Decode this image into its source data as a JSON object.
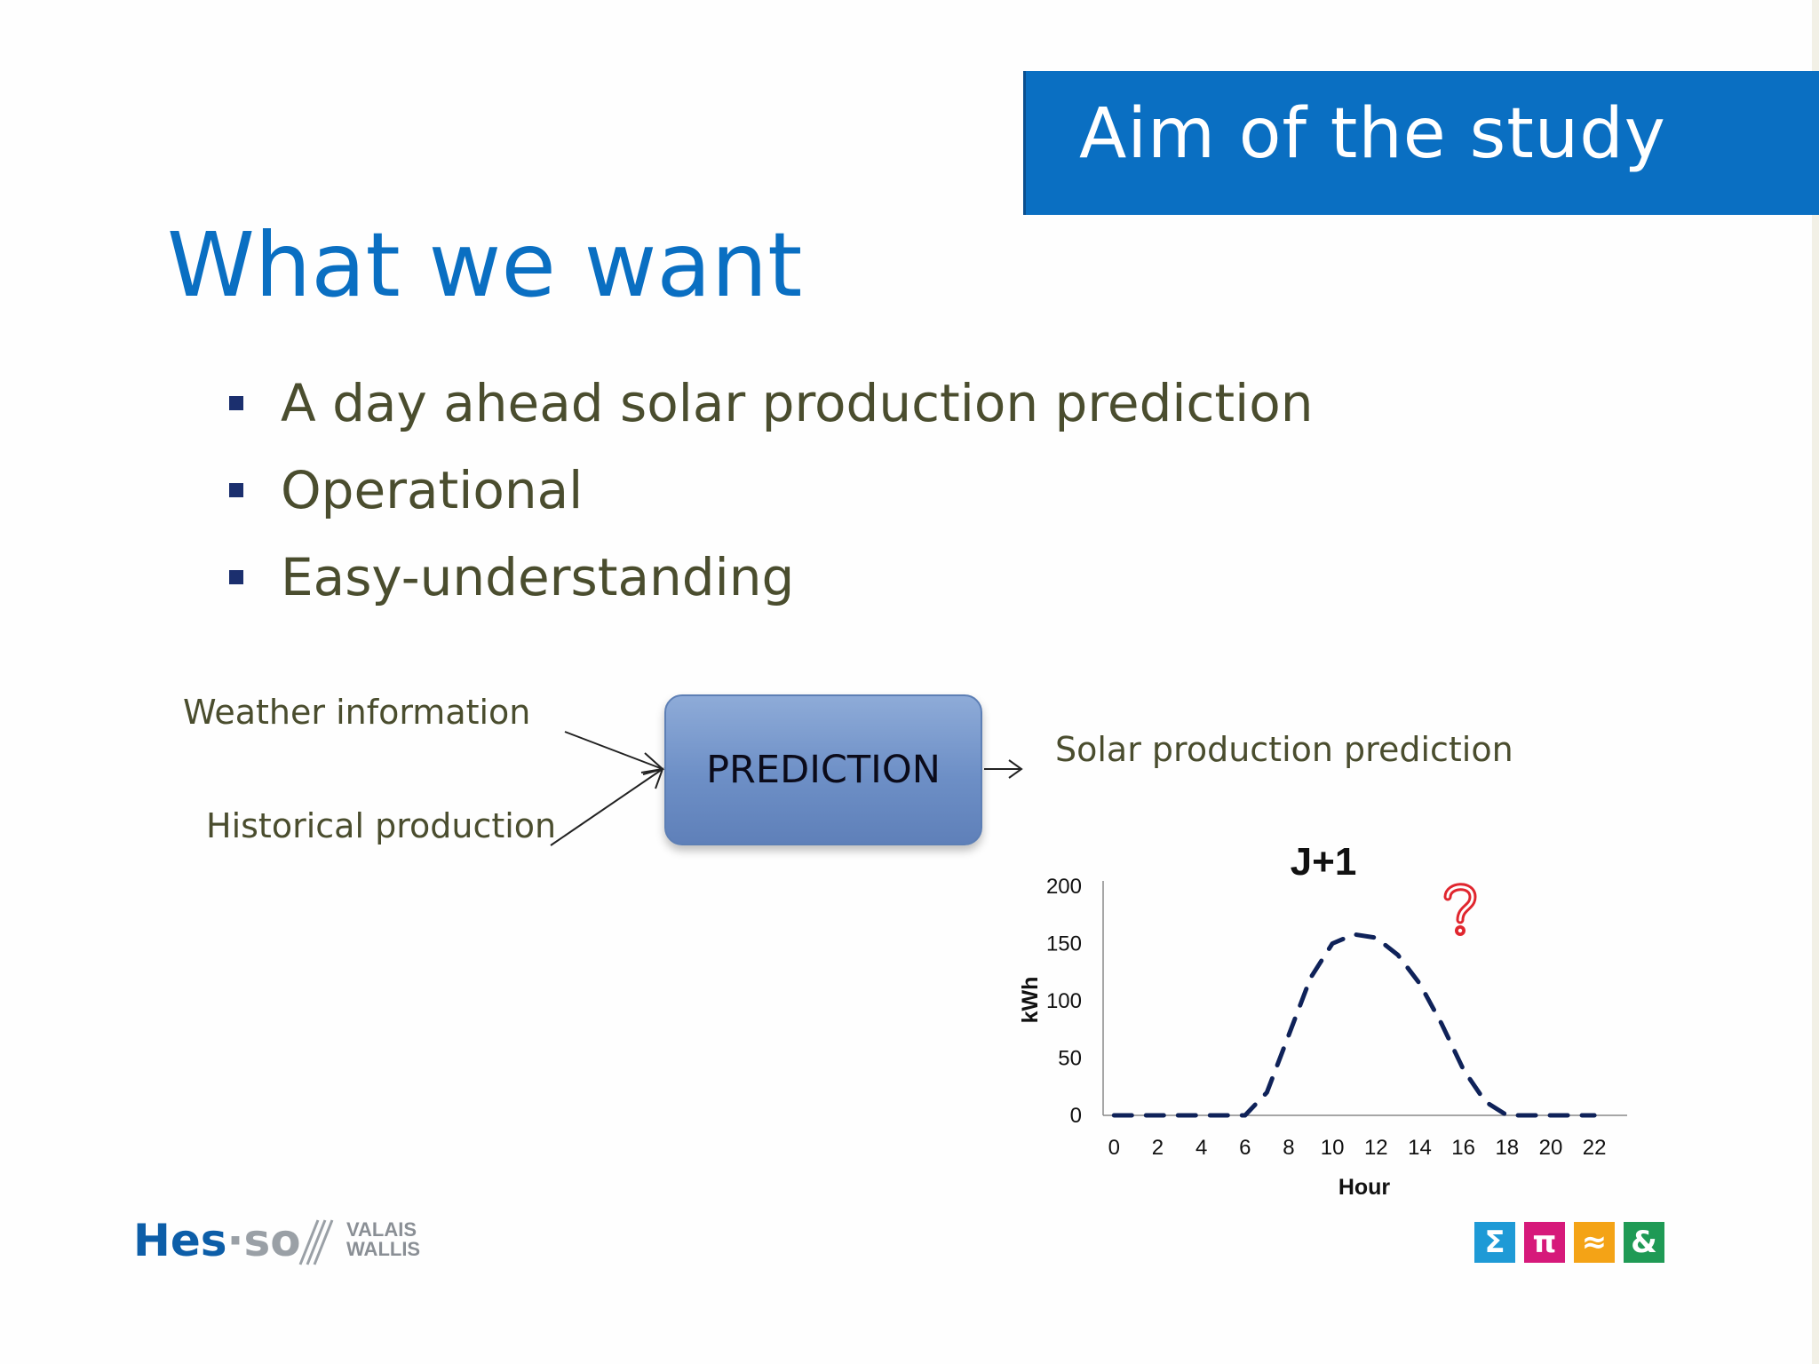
{
  "banner": {
    "title": "Aim of the study",
    "color": "#0a6fc2"
  },
  "main_title": "What we want",
  "bullets": [
    "A day ahead solar production prediction",
    "Operational",
    "Easy-understanding"
  ],
  "diagram": {
    "input_1": "Weather information",
    "input_2": "Historical production",
    "process": "PREDICTION",
    "output": "Solar production prediction"
  },
  "chart_data": {
    "type": "line",
    "title": "J+1",
    "xlabel": "Hour",
    "ylabel": "kWh",
    "x": [
      0,
      2,
      4,
      6,
      7,
      8,
      9,
      10,
      11,
      12,
      13,
      14,
      15,
      16,
      17,
      18,
      20,
      22
    ],
    "series": [
      {
        "values": [
          0,
          0,
          0,
          0,
          20,
          70,
          120,
          150,
          158,
          155,
          140,
          115,
          80,
          40,
          12,
          0,
          0,
          0
        ]
      }
    ],
    "xticks": [
      "0",
      "2",
      "4",
      "6",
      "8",
      "10",
      "12",
      "14",
      "16",
      "18",
      "20",
      "22"
    ],
    "yticks": [
      "0",
      "50",
      "100",
      "150",
      "200"
    ],
    "xlim": [
      -0.5,
      23.5
    ],
    "ylim": [
      0,
      200
    ],
    "line_style": "dashed",
    "line_color": "#0f2259",
    "annotation_icon": "question-mark-icon",
    "annotation_color": "#e0262e"
  },
  "footer": {
    "logo_left": {
      "hes": "Hes",
      "dot": "·",
      "so": "so",
      "line1": "VALAIS",
      "line2": "WALLIS"
    },
    "logo_right": [
      {
        "glyph": "Σ",
        "color": "#1e9ad6"
      },
      {
        "glyph": "π",
        "color": "#d6197a"
      },
      {
        "glyph": "≈",
        "color": "#f4a316"
      },
      {
        "glyph": "&",
        "color": "#1f9a55"
      }
    ]
  }
}
